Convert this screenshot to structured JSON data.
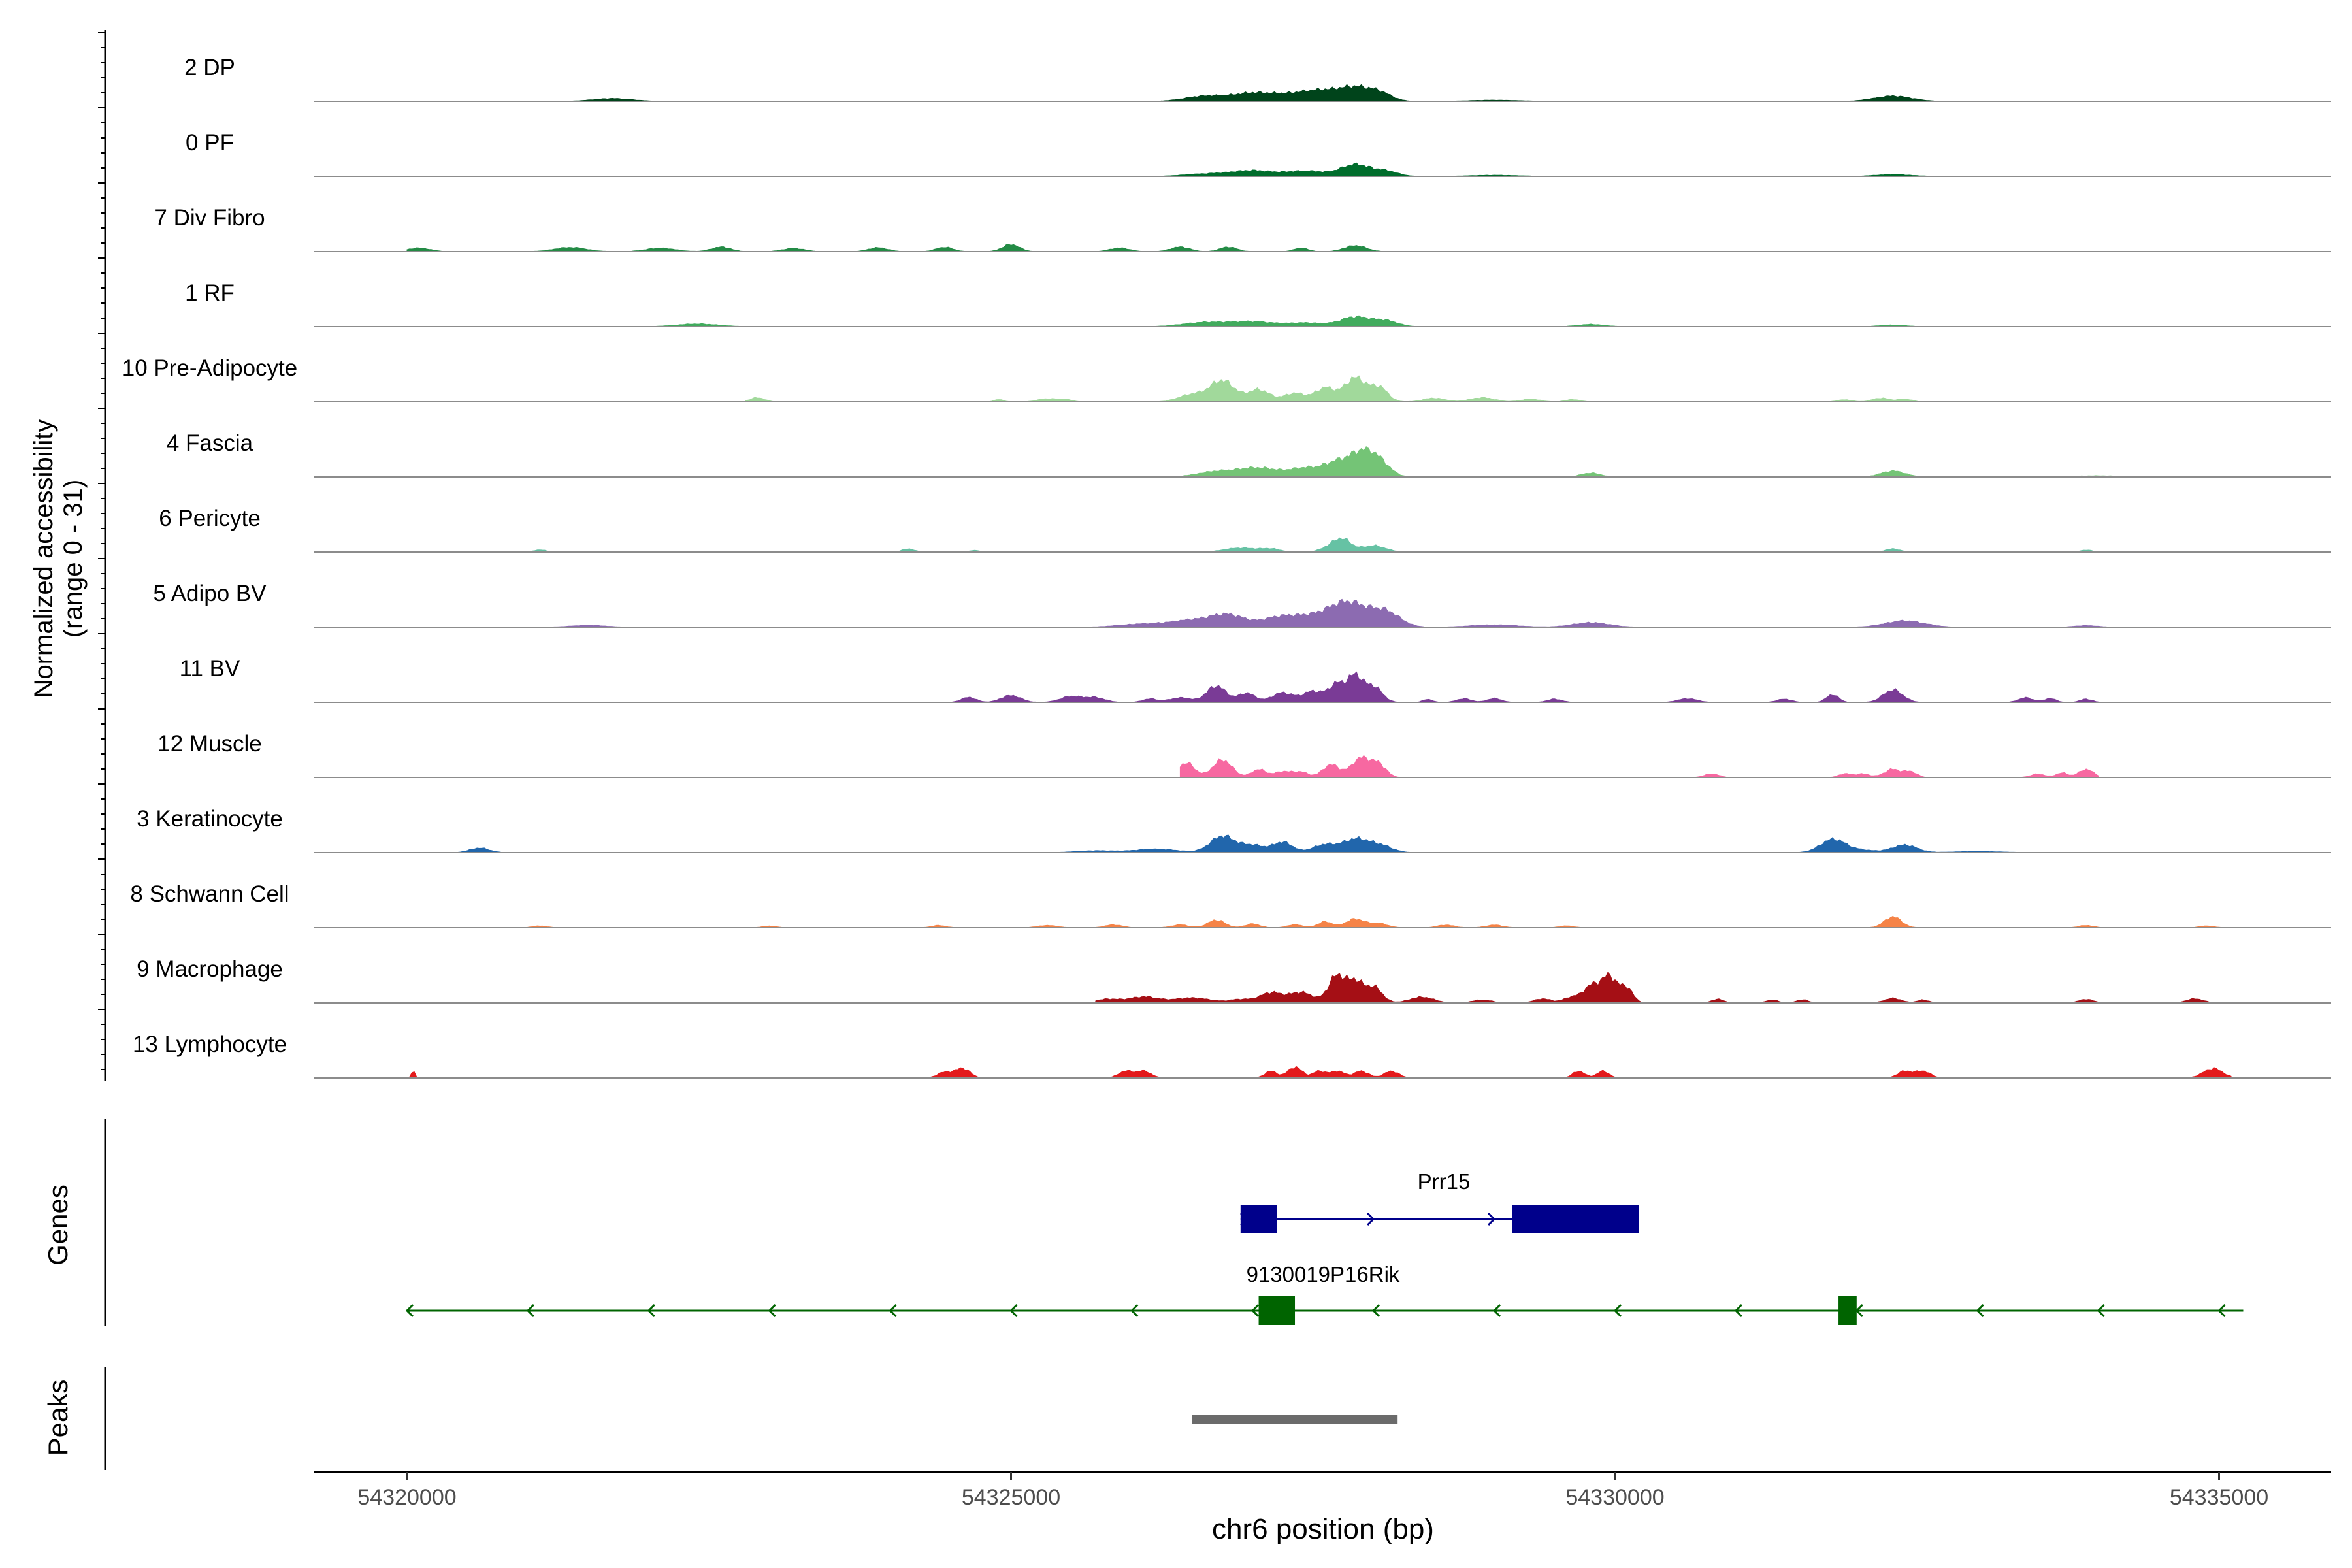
{
  "chart_data": {
    "type": "area",
    "title": "",
    "xlabel": "chr6 position (bp)",
    "ylabel_line1": "Normalized accessibility",
    "ylabel_line2": "(range 0 - 31)",
    "x_range": [
      54319200,
      54336000
    ],
    "x_ticks": [
      54320000,
      54325000,
      54330000,
      54335000
    ],
    "x_tick_labels": [
      "54320000",
      "54325000",
      "54330000",
      "54335000"
    ],
    "y_range": [
      0,
      31
    ],
    "tracks": [
      {
        "name": "2 DP",
        "color": "#00441b",
        "extent": [
          54320000,
          54335000
        ],
        "peaks": [
          [
            54321700,
            160,
            1.2
          ],
          [
            54326600,
            160,
            2.2
          ],
          [
            54327000,
            170,
            3.4
          ],
          [
            54327350,
            170,
            2.6
          ],
          [
            54327600,
            150,
            3.8
          ],
          [
            54327850,
            120,
            5.2
          ],
          [
            54328050,
            100,
            3.5
          ],
          [
            54329000,
            200,
            0.5
          ],
          [
            54332300,
            150,
            2.3
          ]
        ]
      },
      {
        "name": "0 PF",
        "color": "#006d2c",
        "extent": [
          54320000,
          54335200
        ],
        "peaks": [
          [
            54326600,
            180,
            1.0
          ],
          [
            54327000,
            180,
            2.5
          ],
          [
            54327450,
            160,
            2.3
          ],
          [
            54327850,
            120,
            5.1
          ],
          [
            54328100,
            100,
            2.2
          ],
          [
            54329000,
            200,
            0.5
          ],
          [
            54332300,
            150,
            0.8
          ]
        ]
      },
      {
        "name": "7 Div Fibro",
        "color": "#238b45",
        "extent": [
          54320000,
          54328200
        ],
        "peaks": [
          [
            54320100,
            90,
            1.6
          ],
          [
            54321350,
            130,
            1.8
          ],
          [
            54322100,
            120,
            1.5
          ],
          [
            54322600,
            80,
            2.0
          ],
          [
            54323200,
            90,
            1.4
          ],
          [
            54323900,
            80,
            1.7
          ],
          [
            54324450,
            70,
            1.9
          ],
          [
            54325000,
            70,
            3.1
          ],
          [
            54325900,
            80,
            1.6
          ],
          [
            54326400,
            80,
            2.0
          ],
          [
            54326800,
            70,
            2.0
          ],
          [
            54327400,
            60,
            1.5
          ],
          [
            54327850,
            90,
            2.6
          ]
        ]
      },
      {
        "name": "1 RF",
        "color": "#41ab5d",
        "extent": [
          54320000,
          54335000
        ],
        "peaks": [
          [
            54322400,
            170,
            1.2
          ],
          [
            54326600,
            180,
            1.8
          ],
          [
            54327000,
            180,
            2.1
          ],
          [
            54327450,
            160,
            1.6
          ],
          [
            54327850,
            120,
            4.2
          ],
          [
            54328100,
            100,
            2.5
          ],
          [
            54329800,
            110,
            1.0
          ],
          [
            54332300,
            110,
            0.7
          ]
        ]
      },
      {
        "name": "10 Pre-Adipocyte",
        "color": "#a1d99b",
        "extent": [
          54322800,
          54332500
        ],
        "peaks": [
          [
            54322900,
            60,
            1.8
          ],
          [
            54324900,
            40,
            1.0
          ],
          [
            54325300,
            80,
            1.3
          ],
          [
            54325450,
            60,
            0.9
          ],
          [
            54326500,
            110,
            3.2
          ],
          [
            54326750,
            100,
            9.2
          ],
          [
            54327050,
            90,
            5.3
          ],
          [
            54327350,
            90,
            3.8
          ],
          [
            54327600,
            80,
            6.0
          ],
          [
            54327850,
            90,
            10.5
          ],
          [
            54328050,
            70,
            6.0
          ],
          [
            54328500,
            90,
            1.6
          ],
          [
            54328900,
            100,
            1.8
          ],
          [
            54329300,
            80,
            1.2
          ],
          [
            54329650,
            60,
            1.0
          ],
          [
            54331900,
            60,
            0.9
          ],
          [
            54332200,
            70,
            1.6
          ],
          [
            54332400,
            60,
            1.2
          ]
        ]
      },
      {
        "name": "4 Fascia",
        "color": "#74c476",
        "extent": [
          54320000,
          54335200
        ],
        "peaks": [
          [
            54326700,
            160,
            2.3
          ],
          [
            54327050,
            160,
            3.8
          ],
          [
            54327450,
            140,
            3.9
          ],
          [
            54327700,
            100,
            5.4
          ],
          [
            54327900,
            100,
            9.8
          ],
          [
            54328050,
            90,
            5.8
          ],
          [
            54329800,
            80,
            1.7
          ],
          [
            54332300,
            100,
            2.6
          ],
          [
            54334000,
            200,
            0.5
          ]
        ]
      },
      {
        "name": "6 Pericyte",
        "color": "#66c2a4",
        "extent": [
          54320000,
          54335000
        ],
        "peaks": [
          [
            54321100,
            50,
            1.0
          ],
          [
            54324150,
            50,
            1.4
          ],
          [
            54324700,
            50,
            0.7
          ],
          [
            54326900,
            130,
            1.8
          ],
          [
            54327150,
            80,
            1.3
          ],
          [
            54327650,
            80,
            2.3
          ],
          [
            54327750,
            70,
            4.8
          ],
          [
            54328000,
            100,
            2.8
          ],
          [
            54332300,
            60,
            1.4
          ],
          [
            54333900,
            50,
            0.9
          ]
        ]
      },
      {
        "name": "5 Adipo BV",
        "color": "#8c6bb1",
        "extent": [
          54320200,
          54335000
        ],
        "peaks": [
          [
            54321500,
            150,
            0.8
          ],
          [
            54326100,
            200,
            1.4
          ],
          [
            54326500,
            170,
            2.8
          ],
          [
            54326800,
            140,
            5.1
          ],
          [
            54327200,
            140,
            3.2
          ],
          [
            54327500,
            200,
            4.6
          ],
          [
            54327800,
            150,
            9.5
          ],
          [
            54328100,
            120,
            6.5
          ],
          [
            54329000,
            200,
            1.0
          ],
          [
            54329800,
            150,
            2.0
          ],
          [
            54332400,
            160,
            2.8
          ],
          [
            54333900,
            100,
            0.7
          ]
        ]
      },
      {
        "name": "11 BV",
        "color": "#7a3b96",
        "extent": [
          54324500,
          54334100
        ],
        "peaks": [
          [
            54324650,
            60,
            2.2
          ],
          [
            54325000,
            80,
            3.0
          ],
          [
            54325500,
            90,
            2.6
          ],
          [
            54325700,
            80,
            2.0
          ],
          [
            54326150,
            60,
            1.5
          ],
          [
            54326400,
            90,
            2.0
          ],
          [
            54326700,
            80,
            7.2
          ],
          [
            54326950,
            70,
            4.0
          ],
          [
            54327250,
            90,
            4.2
          ],
          [
            54327500,
            80,
            4.8
          ],
          [
            54327700,
            70,
            8.0
          ],
          [
            54327850,
            60,
            11.0
          ],
          [
            54328000,
            70,
            7.0
          ],
          [
            54328450,
            40,
            1.3
          ],
          [
            54328750,
            60,
            1.6
          ],
          [
            54329000,
            60,
            1.7
          ],
          [
            54329500,
            60,
            1.4
          ],
          [
            54330600,
            80,
            1.6
          ],
          [
            54331400,
            60,
            1.4
          ],
          [
            54331800,
            50,
            3.4
          ],
          [
            54332300,
            80,
            5.5
          ],
          [
            54333400,
            60,
            2.0
          ],
          [
            54333600,
            50,
            1.7
          ],
          [
            54333900,
            50,
            1.4
          ]
        ]
      },
      {
        "name": "12 Muscle",
        "color": "#f768a1",
        "extent": [
          54326400,
          54334000
        ],
        "peaks": [
          [
            54326450,
            70,
            6.4
          ],
          [
            54326750,
            80,
            7.7
          ],
          [
            54327050,
            60,
            3.5
          ],
          [
            54327250,
            70,
            2.6
          ],
          [
            54327400,
            60,
            2.3
          ],
          [
            54327650,
            70,
            5.6
          ],
          [
            54327900,
            80,
            8.6
          ],
          [
            54328050,
            60,
            5.0
          ],
          [
            54330800,
            60,
            1.6
          ],
          [
            54331900,
            50,
            1.6
          ],
          [
            54332050,
            60,
            1.6
          ],
          [
            54332300,
            70,
            3.6
          ],
          [
            54332450,
            50,
            2.4
          ],
          [
            54333500,
            60,
            1.5
          ],
          [
            54333700,
            50,
            2.0
          ],
          [
            54333900,
            60,
            3.6
          ]
        ]
      },
      {
        "name": "3 Keratinocyte",
        "color": "#2166ac",
        "extent": [
          54320000,
          54335200
        ],
        "peaks": [
          [
            54320600,
            80,
            2.0
          ],
          [
            54325700,
            160,
            0.8
          ],
          [
            54326200,
            180,
            1.5
          ],
          [
            54326750,
            100,
            7.2
          ],
          [
            54327000,
            100,
            3.2
          ],
          [
            54327250,
            80,
            4.5
          ],
          [
            54327600,
            100,
            3.5
          ],
          [
            54327850,
            100,
            5.6
          ],
          [
            54328050,
            100,
            3.2
          ],
          [
            54331800,
            100,
            5.4
          ],
          [
            54332000,
            150,
            1.2
          ],
          [
            54332400,
            100,
            3.3
          ],
          [
            54333000,
            200,
            0.5
          ]
        ]
      },
      {
        "name": "8 Schwann Cell",
        "color": "#f58347",
        "extent": [
          54321000,
          54335200
        ],
        "peaks": [
          [
            54321100,
            60,
            0.8
          ],
          [
            54323000,
            60,
            0.7
          ],
          [
            54324400,
            60,
            1.0
          ],
          [
            54325300,
            80,
            1.0
          ],
          [
            54325850,
            70,
            1.3
          ],
          [
            54326400,
            70,
            1.3
          ],
          [
            54326700,
            70,
            3.4
          ],
          [
            54327000,
            60,
            1.7
          ],
          [
            54327350,
            60,
            1.4
          ],
          [
            54327600,
            60,
            2.6
          ],
          [
            54327850,
            80,
            3.8
          ],
          [
            54328050,
            70,
            1.8
          ],
          [
            54328600,
            70,
            1.2
          ],
          [
            54329000,
            70,
            1.2
          ],
          [
            54329600,
            60,
            0.8
          ],
          [
            54332300,
            70,
            4.8
          ],
          [
            54333900,
            60,
            1.0
          ],
          [
            54334900,
            60,
            0.8
          ]
        ]
      },
      {
        "name": "9 Macrophage",
        "color": "#a50f15",
        "extent": [
          54325700,
          54335000
        ],
        "peaks": [
          [
            54325800,
            100,
            1.6
          ],
          [
            54326100,
            120,
            2.6
          ],
          [
            54326500,
            150,
            2.2
          ],
          [
            54326900,
            90,
            1.5
          ],
          [
            54327150,
            90,
            4.4
          ],
          [
            54327400,
            100,
            4.6
          ],
          [
            54327700,
            70,
            12.0
          ],
          [
            54327850,
            60,
            8.6
          ],
          [
            54328000,
            70,
            7.0
          ],
          [
            54328400,
            100,
            2.5
          ],
          [
            54328900,
            80,
            1.3
          ],
          [
            54329400,
            70,
            1.8
          ],
          [
            54329650,
            70,
            2.7
          ],
          [
            54329800,
            60,
            6.6
          ],
          [
            54329950,
            70,
            11.8
          ],
          [
            54330100,
            50,
            6.0
          ],
          [
            54330850,
            50,
            1.6
          ],
          [
            54331300,
            50,
            1.3
          ],
          [
            54331550,
            50,
            1.4
          ],
          [
            54332300,
            70,
            2.0
          ],
          [
            54332550,
            50,
            1.3
          ],
          [
            54333900,
            60,
            1.6
          ],
          [
            54334800,
            70,
            1.8
          ]
        ]
      },
      {
        "name": "13 Lymphocyte",
        "color": "#e31a1c",
        "extent": [
          54320000,
          54335100
        ],
        "peaks": [
          [
            54320050,
            15,
            3.0
          ],
          [
            54324450,
            60,
            2.5
          ],
          [
            54324600,
            60,
            4.3
          ],
          [
            54325950,
            60,
            3.0
          ],
          [
            54326100,
            60,
            3.0
          ],
          [
            54327150,
            50,
            3.0
          ],
          [
            54327350,
            60,
            4.8
          ],
          [
            54327550,
            50,
            3.0
          ],
          [
            54327700,
            60,
            3.0
          ],
          [
            54327900,
            60,
            3.0
          ],
          [
            54328150,
            60,
            3.0
          ],
          [
            54329700,
            50,
            3.0
          ],
          [
            54329900,
            50,
            3.0
          ],
          [
            54332400,
            60,
            3.0
          ],
          [
            54332550,
            60,
            3.0
          ],
          [
            54334950,
            80,
            4.2
          ]
        ]
      }
    ],
    "genes": [
      {
        "name": "Prr15",
        "strand": "+",
        "color": "#00008b",
        "start": 54326900,
        "end": 54330200,
        "exons": [
          [
            54326900,
            54327200
          ],
          [
            54329150,
            54330200
          ]
        ],
        "arrows": [
          54326950,
          54328000,
          54329000
        ]
      },
      {
        "name": "9130019P16Rik",
        "strand": "-",
        "color": "#006400",
        "start": 54320000,
        "end": 54335200,
        "exons": [
          [
            54327050,
            54327350
          ],
          [
            54331850,
            54332000
          ]
        ],
        "arrows": [
          54320000,
          54321000,
          54322000,
          54323000,
          54324000,
          54325000,
          54326000,
          54327000,
          54328000,
          54329000,
          54330000,
          54331000,
          54332000,
          54333000,
          54334000,
          54335000
        ]
      }
    ],
    "peaks_track": [
      {
        "start": 54326500,
        "end": 54328200
      }
    ],
    "panel_labels": {
      "genes": "Genes",
      "peaks": "Peaks"
    }
  }
}
